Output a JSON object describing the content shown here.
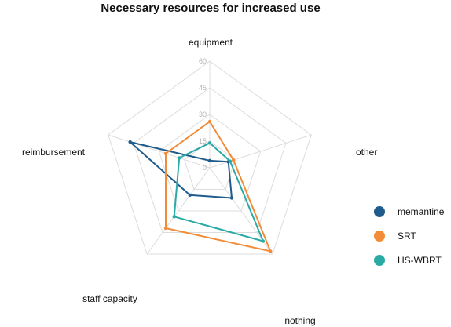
{
  "chart_data": {
    "type": "radar",
    "title": "Necessary resources for increased use",
    "axes": [
      "equipment",
      "other",
      "nothing",
      "staff capacity",
      "reimbursement"
    ],
    "ticks": [
      "0",
      "15",
      "30",
      "45",
      "60"
    ],
    "rlim": [
      0,
      60
    ],
    "series": [
      {
        "name": "memantine",
        "color": "#1f5c8c",
        "values": [
          4,
          11,
          21,
          19,
          47
        ]
      },
      {
        "name": "SRT",
        "color": "#f28c38",
        "values": [
          26,
          14,
          58,
          42,
          26
        ]
      },
      {
        "name": "HS-WBRT",
        "color": "#2aaaa5",
        "values": [
          14,
          12,
          51,
          34,
          18
        ]
      }
    ],
    "legend_position": "right",
    "grid": true
  }
}
